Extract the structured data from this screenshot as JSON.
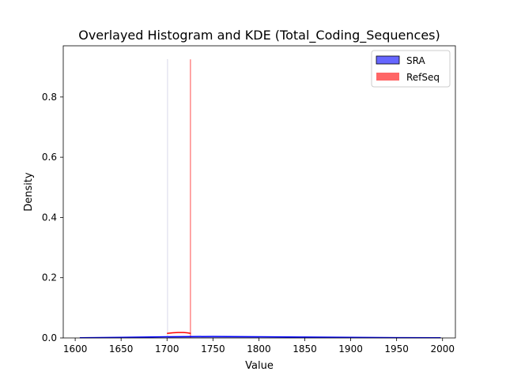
{
  "chart_data": {
    "type": "histogram",
    "title": "Overlayed Histogram and KDE (Total_Coding_Sequences)",
    "xlabel": "Value",
    "ylabel": "Density",
    "xlim": [
      1587,
      2014
    ],
    "ylim": [
      0,
      0.97
    ],
    "xticks": [
      1600,
      1650,
      1700,
      1750,
      1800,
      1850,
      1900,
      1950,
      2000
    ],
    "yticks": [
      0.0,
      0.2,
      0.4,
      0.6,
      0.8
    ],
    "xtick_labels": [
      "1600",
      "1650",
      "1700",
      "1750",
      "1800",
      "1850",
      "1900",
      "1950",
      "2000"
    ],
    "ytick_labels": [
      "0.0",
      "0.2",
      "0.4",
      "0.6",
      "0.8"
    ],
    "grid": false,
    "legend_position": "top-right",
    "series": [
      {
        "name": "SRA",
        "color": "#0000ff",
        "bins": [
          {
            "x0": 1605,
            "x1": 1700,
            "density": 0.001
          },
          {
            "x0": 1700,
            "x1": 1701,
            "density": 0.925
          },
          {
            "x0": 1701,
            "x1": 1800,
            "density": 0.002
          },
          {
            "x0": 1800,
            "x1": 1998,
            "density": 0.001
          }
        ],
        "kde": [
          [
            1605,
            0.0005
          ],
          [
            1650,
            0.002
          ],
          [
            1700,
            0.004
          ],
          [
            1750,
            0.005
          ],
          [
            1800,
            0.004
          ],
          [
            1850,
            0.003
          ],
          [
            1900,
            0.002
          ],
          [
            1950,
            0.001
          ],
          [
            1998,
            0.0005
          ]
        ]
      },
      {
        "name": "RefSeq",
        "color": "#ff0000",
        "bins": [
          {
            "x0": 1725,
            "x1": 1726,
            "density": 0.925
          }
        ],
        "kde": [
          [
            1700,
            0.015
          ],
          [
            1706,
            0.017
          ],
          [
            1712,
            0.018
          ],
          [
            1718,
            0.018
          ],
          [
            1722,
            0.017
          ],
          [
            1726,
            0.015
          ]
        ]
      }
    ]
  }
}
